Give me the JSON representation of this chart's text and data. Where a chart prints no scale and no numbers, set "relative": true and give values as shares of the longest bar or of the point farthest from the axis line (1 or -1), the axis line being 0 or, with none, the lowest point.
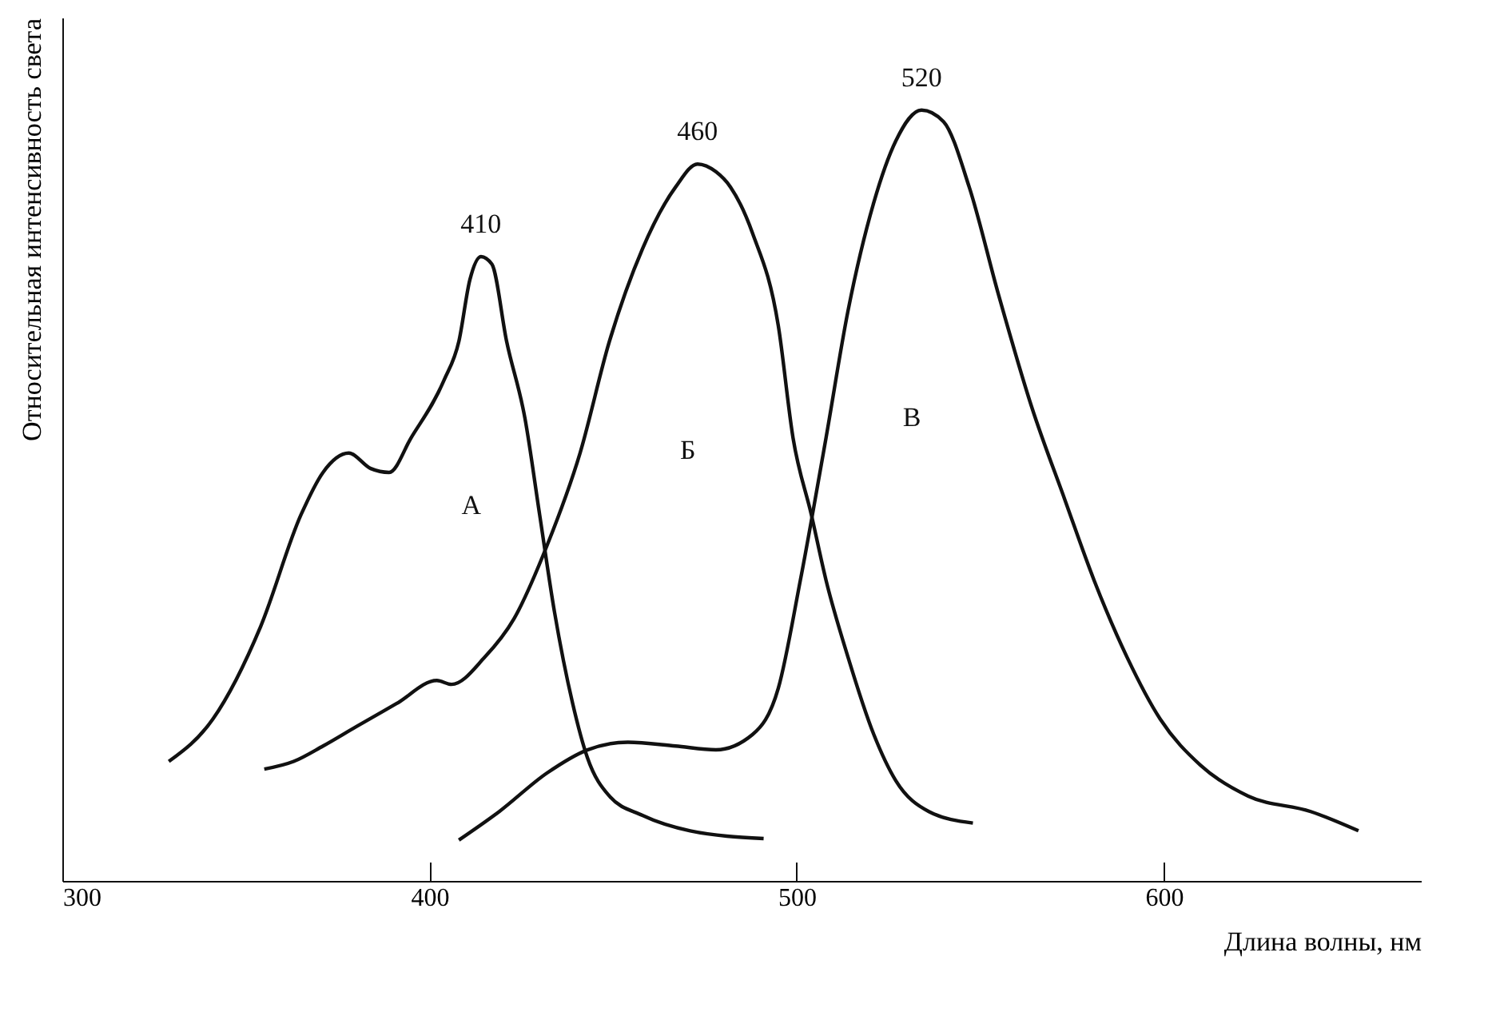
{
  "chart_data": {
    "type": "line",
    "relative": true,
    "xlabel": "Длина волны, нм",
    "ylabel": "Относительная интенсивность света",
    "xlim": [
      300,
      670
    ],
    "xticks": [
      300,
      400,
      500,
      600
    ],
    "grid": false,
    "marker": "none",
    "line_style": "solid",
    "annotations": [
      {
        "text": "410",
        "x": 414,
        "y": 0.81
      },
      {
        "text": "460",
        "x": 473,
        "y": 0.93
      },
      {
        "text": "520",
        "x": 534,
        "y": 1
      },
      "А",
      "Б",
      "В"
    ],
    "series": [
      {
        "color": "#111111",
        "x": [
          329,
          341,
          354,
          365,
          371,
          378,
          384,
          389,
          395,
          404,
          408,
          411,
          414,
          417,
          421,
          426,
          430,
          434,
          439,
          443,
          449,
          458,
          471,
          491
        ],
        "values": [
          0.155,
          0.21,
          0.33,
          0.475,
          0.53,
          0.555,
          0.535,
          0.53,
          0.575,
          0.65,
          0.7,
          0.78,
          0.81,
          0.8,
          0.7,
          0.6,
          0.475,
          0.35,
          0.23,
          0.16,
          0.11,
          0.085,
          0.065,
          0.055
        ]
      },
      {
        "color": "#111111",
        "x": [
          355,
          363,
          371,
          380,
          391,
          402,
          406,
          415,
          423,
          432,
          441,
          449,
          458,
          467,
          473,
          478,
          482,
          488,
          495,
          499,
          504,
          508,
          514,
          521,
          527,
          536,
          548
        ],
        "values": [
          0.145,
          0.155,
          0.175,
          0.2,
          0.23,
          0.26,
          0.255,
          0.29,
          0.34,
          0.435,
          0.555,
          0.7,
          0.82,
          0.9,
          0.93,
          0.92,
          0.9,
          0.84,
          0.72,
          0.575,
          0.475,
          0.39,
          0.29,
          0.19,
          0.13,
          0.09,
          0.075
        ]
      },
      {
        "color": "#111111",
        "x": [
          408,
          419,
          432,
          443,
          454,
          467,
          478,
          488,
          495,
          501,
          508,
          514,
          521,
          527,
          534,
          540,
          547,
          555,
          564,
          573,
          581,
          590,
          599,
          610,
          623,
          640,
          653
        ],
        "values": [
          0.053,
          0.09,
          0.14,
          0.17,
          0.18,
          0.175,
          0.17,
          0.19,
          0.25,
          0.39,
          0.575,
          0.74,
          0.88,
          0.96,
          1,
          0.985,
          0.9,
          0.76,
          0.615,
          0.495,
          0.39,
          0.29,
          0.21,
          0.15,
          0.11,
          0.09,
          0.065
        ]
      }
    ]
  }
}
